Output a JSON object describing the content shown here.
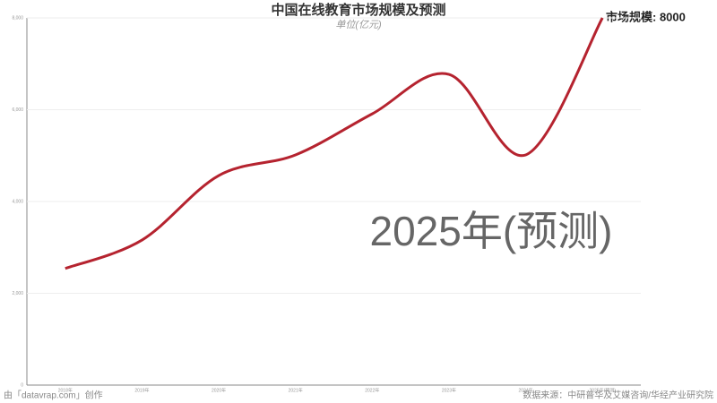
{
  "chart_data": {
    "type": "line",
    "title": "中国在线教育市场规模及预测",
    "subtitle": "单位(亿元)",
    "categories": [
      "2018年",
      "2019年",
      "2020年",
      "2021年",
      "2022年",
      "2023年",
      "2024年",
      "2025年(预测)"
    ],
    "series": [
      {
        "name": "市场规模",
        "color": "#b5232f",
        "values": [
          2540,
          3160,
          4565,
          5015,
          5910,
          6770,
          5015,
          8000
        ]
      }
    ],
    "ylim": [
      0,
      8000
    ],
    "yticks": [
      0,
      {
        "value": 2000,
        "label": "2,000"
      },
      {
        "value": 4000,
        "label": "4,000"
      },
      {
        "value": 6000,
        "label": "6,000"
      },
      {
        "value": 8000,
        "label": "8,000"
      }
    ],
    "grid": true,
    "tooltip": "市场规模: 8000",
    "timeline_label": "2025年(预测)",
    "credit": "由「datavrap.com」创作",
    "source": "数据来源：中研普华及艾媒咨询/华经产业研究院"
  }
}
